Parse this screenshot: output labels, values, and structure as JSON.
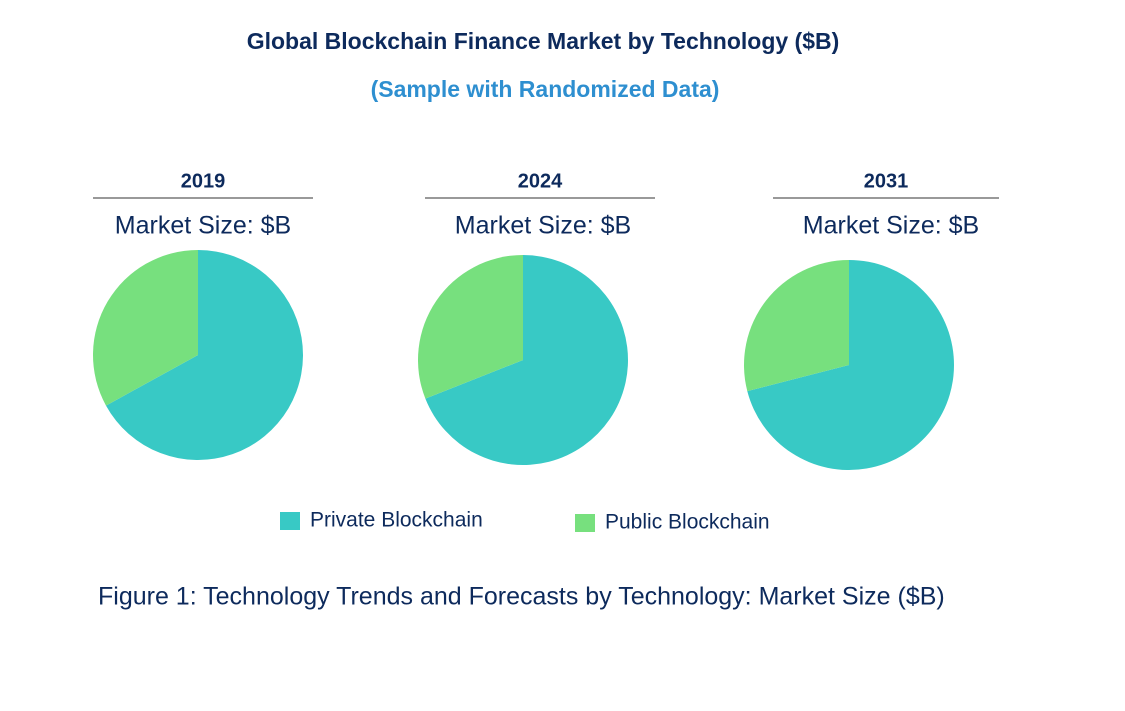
{
  "title": "Global Blockchain Finance Market by  Technology ($B)",
  "subtitle": "(Sample with Randomized Data)",
  "caption": "Figure 1: Technology Trends and Forecasts by Technology: Market Size ($B)",
  "chart_data": [
    {
      "type": "pie",
      "title": "2019",
      "subtitle": "Market Size: $B",
      "categories": [
        "Private Blockchain",
        "Public Blockchain"
      ],
      "values": [
        67,
        33
      ],
      "colors": [
        "#38c9c5",
        "#77e07e"
      ]
    },
    {
      "type": "pie",
      "title": "2024",
      "subtitle": "Market Size: $B",
      "categories": [
        "Private Blockchain",
        "Public Blockchain"
      ],
      "values": [
        69,
        31
      ],
      "colors": [
        "#38c9c5",
        "#77e07e"
      ]
    },
    {
      "type": "pie",
      "title": "2031",
      "subtitle": "Market Size: $B",
      "categories": [
        "Private Blockchain",
        "Public Blockchain"
      ],
      "values": [
        71,
        29
      ],
      "colors": [
        "#38c9c5",
        "#77e07e"
      ]
    }
  ]
}
